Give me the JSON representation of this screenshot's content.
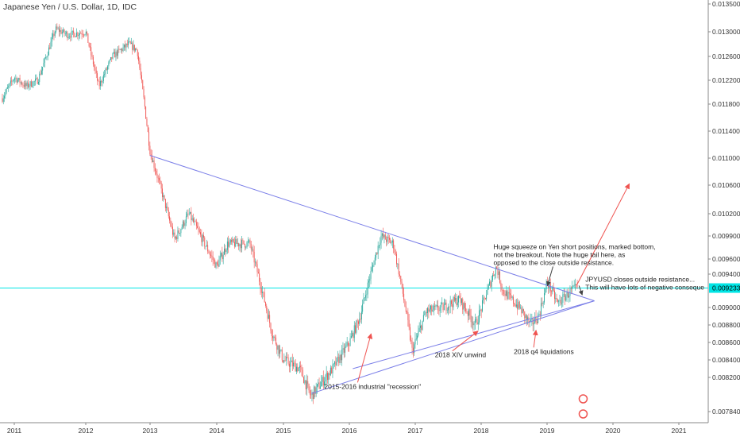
{
  "chart_data": {
    "type": "candlestick",
    "title": "Japanese Yen / U.S. Dollar, 1D, IDC",
    "x_ticks": [
      "2011",
      "2012",
      "2013",
      "2014",
      "2015",
      "2016",
      "2017",
      "2018",
      "2019",
      "2020",
      "2021"
    ],
    "y_ticks": [
      "0.013500",
      "0.013000",
      "0.012600",
      "0.012200",
      "0.011800",
      "0.011400",
      "0.011000",
      "0.010600",
      "0.010200",
      "0.009900",
      "0.009600",
      "0.009400",
      "0.009000",
      "0.008800",
      "0.008600",
      "0.008400",
      "0.008200",
      "0.007840"
    ],
    "current_price": "0.009233",
    "colors": {
      "up": "#26a69a",
      "down": "#ef5350",
      "trendline": "#7b7fe8",
      "arrow": "#ef5350",
      "price_line": "#00e5e5"
    },
    "price_path": [
      [
        "2010-11-01",
        0.0119
      ],
      [
        "2011-01-01",
        0.01225
      ],
      [
        "2011-03-01",
        0.0121
      ],
      [
        "2011-05-01",
        0.0122
      ],
      [
        "2011-08-01",
        0.01305
      ],
      [
        "2011-10-01",
        0.01295
      ],
      [
        "2012-01-01",
        0.013
      ],
      [
        "2012-03-15",
        0.0121
      ],
      [
        "2012-06-01",
        0.0126
      ],
      [
        "2012-09-01",
        0.0128
      ],
      [
        "2012-10-20",
        0.0127
      ],
      [
        "2013-01-01",
        0.0111
      ],
      [
        "2013-05-15",
        0.00985
      ],
      [
        "2013-08-01",
        0.0102
      ],
      [
        "2013-12-31",
        0.0095
      ],
      [
        "2014-03-01",
        0.0098
      ],
      [
        "2014-07-01",
        0.0098
      ],
      [
        "2014-11-01",
        0.0087
      ],
      [
        "2015-01-01",
        0.0084
      ],
      [
        "2015-04-01",
        0.0083
      ],
      [
        "2015-06-01",
        0.008
      ],
      [
        "2015-08-01",
        0.00815
      ],
      [
        "2015-10-01",
        0.0083
      ],
      [
        "2016-01-01",
        0.0086
      ],
      [
        "2016-03-01",
        0.0089
      ],
      [
        "2016-06-24",
        0.0099
      ],
      [
        "2016-09-01",
        0.0098
      ],
      [
        "2016-11-15",
        0.0089
      ],
      [
        "2016-12-15",
        0.0085
      ],
      [
        "2017-03-01",
        0.00895
      ],
      [
        "2017-06-01",
        0.009
      ],
      [
        "2017-09-01",
        0.0091
      ],
      [
        "2017-12-01",
        0.0088
      ],
      [
        "2018-03-26",
        0.0095
      ],
      [
        "2018-05-01",
        0.0092
      ],
      [
        "2018-08-01",
        0.009
      ],
      [
        "2018-10-01",
        0.0088
      ],
      [
        "2018-11-15",
        0.0089
      ],
      [
        "2019-01-03",
        0.0093
      ],
      [
        "2019-03-01",
        0.00905
      ],
      [
        "2019-05-15",
        0.0092
      ],
      [
        "2019-06-20",
        0.009233
      ]
    ],
    "trendlines": [
      {
        "name": "descending",
        "from": [
          "2013-01-01",
          0.01104
        ],
        "to": [
          "2019-09-20",
          0.00908
        ]
      },
      {
        "name": "ascending-lower",
        "from": [
          "2015-06-05",
          0.00803
        ],
        "to": [
          "2019-09-20",
          0.00908
        ]
      },
      {
        "name": "ascending-inner",
        "from": [
          "2016-01-20",
          0.0083
        ],
        "to": [
          "2019-09-20",
          0.00908
        ]
      }
    ],
    "annotations": [
      {
        "lines": [
          "2015-2016 industrial \"recession\""
        ],
        "text_at": [
          "2015-08-15",
          0.00808
        ],
        "arrow_to": [
          "2016-05-01",
          0.0087
        ]
      },
      {
        "lines": [
          "2018 XIV unwind"
        ],
        "text_at": [
          "2017-04-20",
          0.00843
        ],
        "arrow_to": [
          "2017-12-15",
          0.00873
        ]
      },
      {
        "lines": [
          "2018 q4 liquidations"
        ],
        "text_at": [
          "2018-07-01",
          0.00847
        ],
        "arrow_to": [
          "2018-11-01",
          0.00874
        ]
      },
      {
        "lines": [
          "Huge squeeze on Yen short positions, marked bottom,",
          "not the breakout. Note the huge tail here, as",
          "opposed to the close outside resistance."
        ],
        "text_at": [
          "2018-03-10",
          0.00973
        ],
        "arrow_to": [
          "2019-01-03",
          0.00926
        ]
      },
      {
        "lines": [
          "JPYUSD closes outside resistance...",
          "This will have lots of negative conseque"
        ],
        "text_at": [
          "2019-08-01",
          0.00931
        ],
        "arrow_to": [
          "2019-07-15",
          0.00915
        ]
      }
    ],
    "projection_arrow": {
      "from": [
        "2019-06-15",
        0.00927
      ],
      "to": [
        "2020-04-01",
        0.01062
      ]
    }
  }
}
